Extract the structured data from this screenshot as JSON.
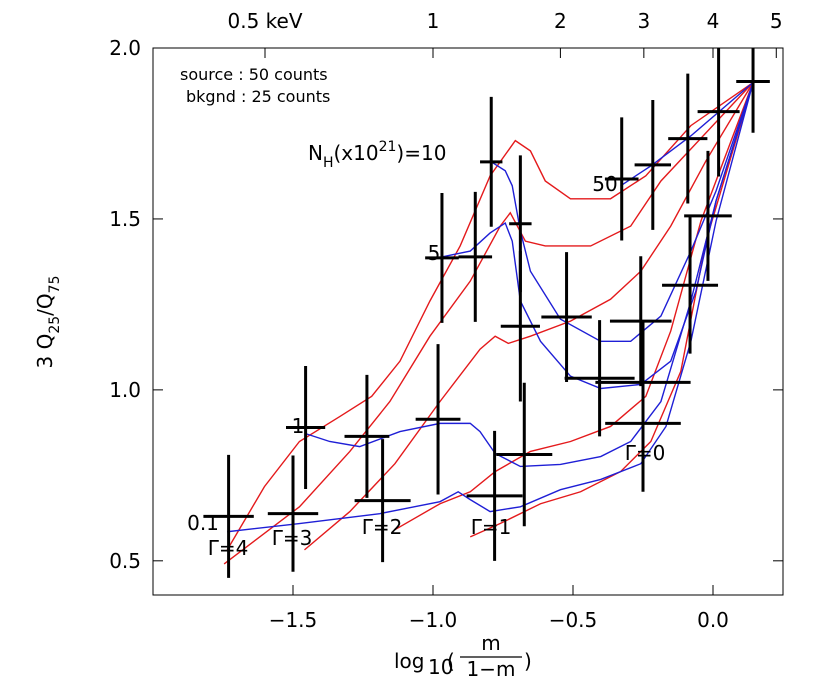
{
  "chart_data": {
    "type": "quantile-grid",
    "annotations": [
      "source : 50 counts",
      "bkgnd : 25 counts"
    ],
    "xlabel": {
      "text": "log",
      "sub": "10",
      "open": "(",
      "num": "m",
      "den": "1−m",
      "close": ")"
    },
    "ylabel": [
      {
        "text": "3 Q"
      },
      {
        "text": "25",
        "shift": "sub"
      },
      {
        "text": "/Q"
      },
      {
        "text": "75",
        "shift": "sub"
      }
    ],
    "xlim": [
      -2.0,
      0.25
    ],
    "ylim": [
      0.4,
      2.0
    ],
    "xticks": [
      {
        "value": -1.5,
        "label": "−1.5"
      },
      {
        "value": -1.0,
        "label": "−1.0"
      },
      {
        "value": -0.5,
        "label": "−0.5"
      },
      {
        "value": 0.0,
        "label": "0.0"
      }
    ],
    "yticks": [
      0.5,
      {
        "value": 1.0,
        "label": "1.0"
      },
      1.5,
      {
        "value": 2.0,
        "label": "2.0"
      }
    ],
    "x2ticks": [
      {
        "value": -1.6,
        "label": "0.5 keV"
      },
      {
        "value": -1.0,
        "label": "1"
      },
      {
        "value": -0.545,
        "label": "2"
      },
      {
        "value": -0.247,
        "label": "3"
      },
      {
        "value": 0.0,
        "label": "4"
      },
      {
        "value": 0.226,
        "label": "5"
      }
    ],
    "points": {
      "color": "#000000",
      "x": [
        -1.73,
        -1.5,
        -1.455,
        -1.236,
        -1.18,
        -0.982,
        -0.968,
        -0.849,
        -0.792,
        -0.78,
        -0.688,
        -0.688,
        -0.674,
        -0.523,
        -0.405,
        -0.326,
        -0.258,
        -0.215,
        -0.25,
        -0.25,
        -0.09,
        -0.082,
        0.02,
        -0.018,
        0.143
      ],
      "y": [
        0.63,
        0.638,
        0.89,
        0.864,
        0.676,
        0.914,
        1.386,
        1.389,
        1.667,
        0.69,
        1.486,
        1.186,
        0.811,
        1.213,
        1.034,
        1.617,
        1.201,
        1.658,
        1.022,
        0.902,
        1.735,
        1.306,
        1.814,
        1.509,
        1.902
      ],
      "xerr": [
        0.09,
        0.09,
        0.07,
        0.08,
        0.1,
        0.08,
        0.06,
        0.06,
        0.04,
        0.1,
        0.04,
        0.07,
        0.1,
        0.09,
        0.125,
        0.06,
        0.11,
        0.065,
        0.17,
        0.135,
        0.07,
        0.1,
        0.075,
        0.085,
        0.06
      ],
      "yerr": [
        0.18,
        0.17,
        0.18,
        0.18,
        0.18,
        0.22,
        0.19,
        0.19,
        0.19,
        0.19,
        0.2,
        0.22,
        0.21,
        0.19,
        0.17,
        0.18,
        0.19,
        0.19,
        0.18,
        0.2,
        0.19,
        0.2,
        0.19,
        0.19,
        0.15
      ]
    },
    "series": [
      {
        "name": "Γ=4",
        "color": "#e41a1c",
        "x": [
          -1.735,
          -1.602,
          -1.477,
          -1.333,
          -1.219,
          -1.118,
          -1.011,
          -0.903,
          -0.796,
          -0.706,
          -0.652,
          -0.599,
          -0.509,
          -0.366,
          -0.24,
          -0.079,
          0.143
        ],
        "y": [
          0.532,
          0.717,
          0.849,
          0.922,
          0.981,
          1.084,
          1.26,
          1.421,
          1.626,
          1.729,
          1.699,
          1.611,
          1.559,
          1.559,
          1.626,
          1.773,
          1.899
        ]
      },
      {
        "name": "Γ=3",
        "color": "#e41a1c",
        "x": [
          -1.746,
          -1.477,
          -1.297,
          -1.154,
          -1.011,
          -0.867,
          -0.76,
          -0.724,
          -0.67,
          -0.599,
          -0.437,
          -0.294,
          -0.186,
          0.143
        ],
        "y": [
          0.491,
          0.658,
          0.82,
          0.966,
          1.157,
          1.318,
          1.479,
          1.518,
          1.435,
          1.421,
          1.421,
          1.479,
          1.611,
          1.899
        ]
      },
      {
        "name": "Γ=2",
        "color": "#e41a1c",
        "x": [
          -1.459,
          -1.297,
          -1.136,
          -0.975,
          -0.832,
          -0.778,
          -0.731,
          -0.652,
          -0.509,
          -0.366,
          -0.258,
          -0.151,
          -0.025,
          0.143
        ],
        "y": [
          0.532,
          0.644,
          0.784,
          0.966,
          1.119,
          1.157,
          1.136,
          1.157,
          1.201,
          1.265,
          1.347,
          1.479,
          1.67,
          1.899
        ]
      },
      {
        "name": "Γ=1",
        "color": "#e41a1c",
        "x": [
          -1.136,
          -0.975,
          -0.867,
          -0.778,
          -0.652,
          -0.509,
          -0.366,
          -0.24,
          -0.151,
          -0.043,
          0.143
        ],
        "y": [
          0.591,
          0.667,
          0.702,
          0.761,
          0.82,
          0.849,
          0.893,
          0.981,
          1.172,
          1.494,
          1.899
        ]
      },
      {
        "name": "Γ=0",
        "color": "#e41a1c",
        "x": [
          -0.867,
          -0.76,
          -0.616,
          -0.473,
          -0.33,
          -0.222,
          -0.115,
          -0.025,
          0.143
        ],
        "y": [
          0.57,
          0.609,
          0.667,
          0.702,
          0.761,
          0.849,
          1.054,
          1.435,
          1.899
        ]
      },
      {
        "name": "0.1",
        "color": "#1f1fd6",
        "x": [
          -1.735,
          -1.477,
          -1.19,
          -0.975,
          -0.91,
          -0.867,
          -0.796,
          -0.688,
          -0.545,
          -0.401,
          -0.258,
          -0.168,
          -0.079,
          0.011,
          0.143
        ],
        "y": [
          0.585,
          0.609,
          0.638,
          0.673,
          0.702,
          0.679,
          0.644,
          0.658,
          0.708,
          0.738,
          0.784,
          0.893,
          1.142,
          1.494,
          1.899
        ]
      },
      {
        "name": "1",
        "color": "#1f1fd6",
        "x": [
          -1.455,
          -1.369,
          -1.262,
          -1.118,
          -0.975,
          -0.867,
          -0.832,
          -0.778,
          -0.688,
          -0.545,
          -0.401,
          -0.294,
          -0.186,
          -0.079,
          0.011,
          0.143
        ],
        "y": [
          0.872,
          0.849,
          0.834,
          0.878,
          0.902,
          0.902,
          0.878,
          0.814,
          0.776,
          0.782,
          0.805,
          0.849,
          0.966,
          1.26,
          1.553,
          1.899
        ]
      },
      {
        "name": "5",
        "color": "#1f1fd6",
        "x": [
          -0.968,
          -0.867,
          -0.796,
          -0.742,
          -0.717,
          -0.688,
          -0.616,
          -0.509,
          -0.401,
          -0.258,
          -0.151,
          -0.061,
          0.011,
          0.143
        ],
        "y": [
          1.389,
          1.406,
          1.459,
          1.488,
          1.435,
          1.26,
          1.142,
          1.04,
          1.004,
          1.016,
          1.084,
          1.289,
          1.553,
          1.899
        ]
      },
      {
        "name_parts": [
          {
            "text": "N"
          },
          {
            "text": "H",
            "shift": "sub"
          },
          {
            "text": "(x10"
          },
          {
            "text": "21",
            "shift": "sup"
          },
          {
            "text": ")=10"
          }
        ],
        "color": "#1f1fd6",
        "x": [
          -0.792,
          -0.742,
          -0.717,
          -0.688,
          -0.652,
          -0.545,
          -0.401,
          -0.294,
          -0.186,
          -0.079,
          0.011,
          0.143
        ],
        "y": [
          1.667,
          1.641,
          1.597,
          1.465,
          1.347,
          1.207,
          1.142,
          1.142,
          1.216,
          1.406,
          1.582,
          1.899
        ]
      },
      {
        "name": "50",
        "color": "#1f1fd6",
        "x": [
          -0.33,
          -0.222,
          -0.079,
          0.143
        ],
        "y": [
          1.597,
          1.655,
          1.743,
          1.899
        ]
      }
    ]
  }
}
